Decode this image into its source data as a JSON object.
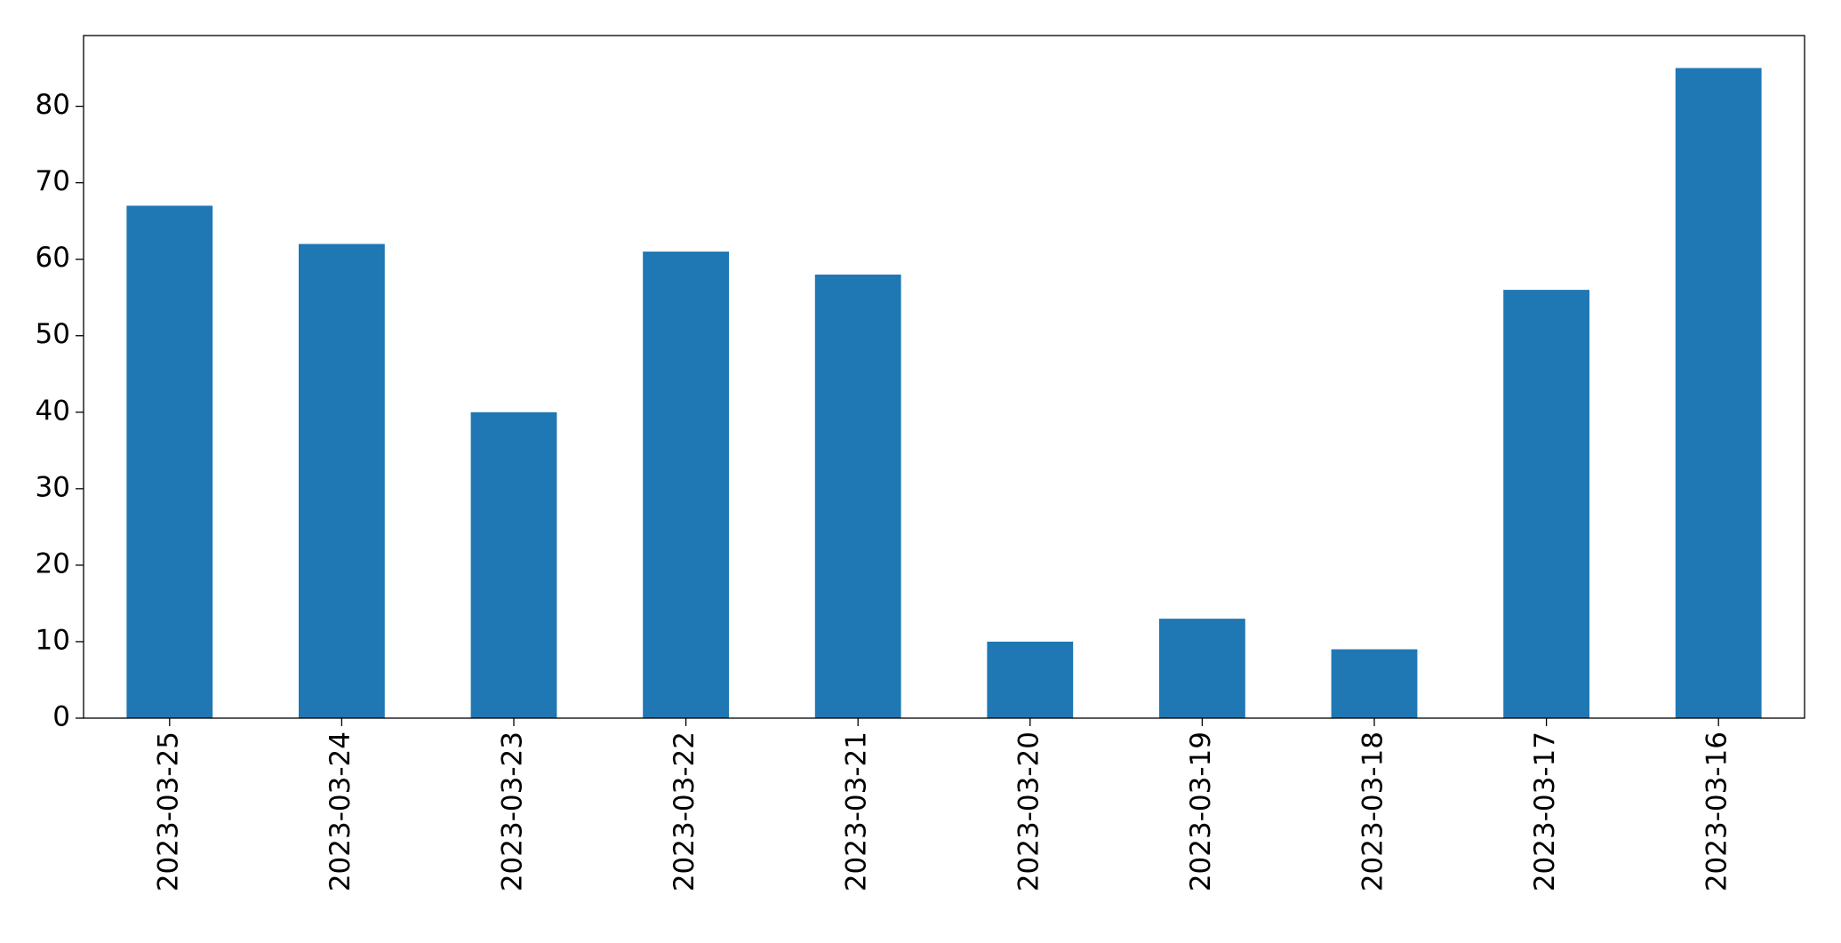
{
  "chart_data": {
    "type": "bar",
    "categories": [
      "2023-03-25",
      "2023-03-24",
      "2023-03-23",
      "2023-03-22",
      "2023-03-21",
      "2023-03-20",
      "2023-03-19",
      "2023-03-18",
      "2023-03-17",
      "2023-03-16"
    ],
    "values": [
      67,
      62,
      40,
      61,
      58,
      10,
      13,
      9,
      56,
      85
    ],
    "color": "#1f77b4",
    "ylim": [
      0,
      89.25
    ],
    "yticks": [
      0,
      10,
      20,
      30,
      40,
      50,
      60,
      70,
      80
    ],
    "grid": false
  }
}
